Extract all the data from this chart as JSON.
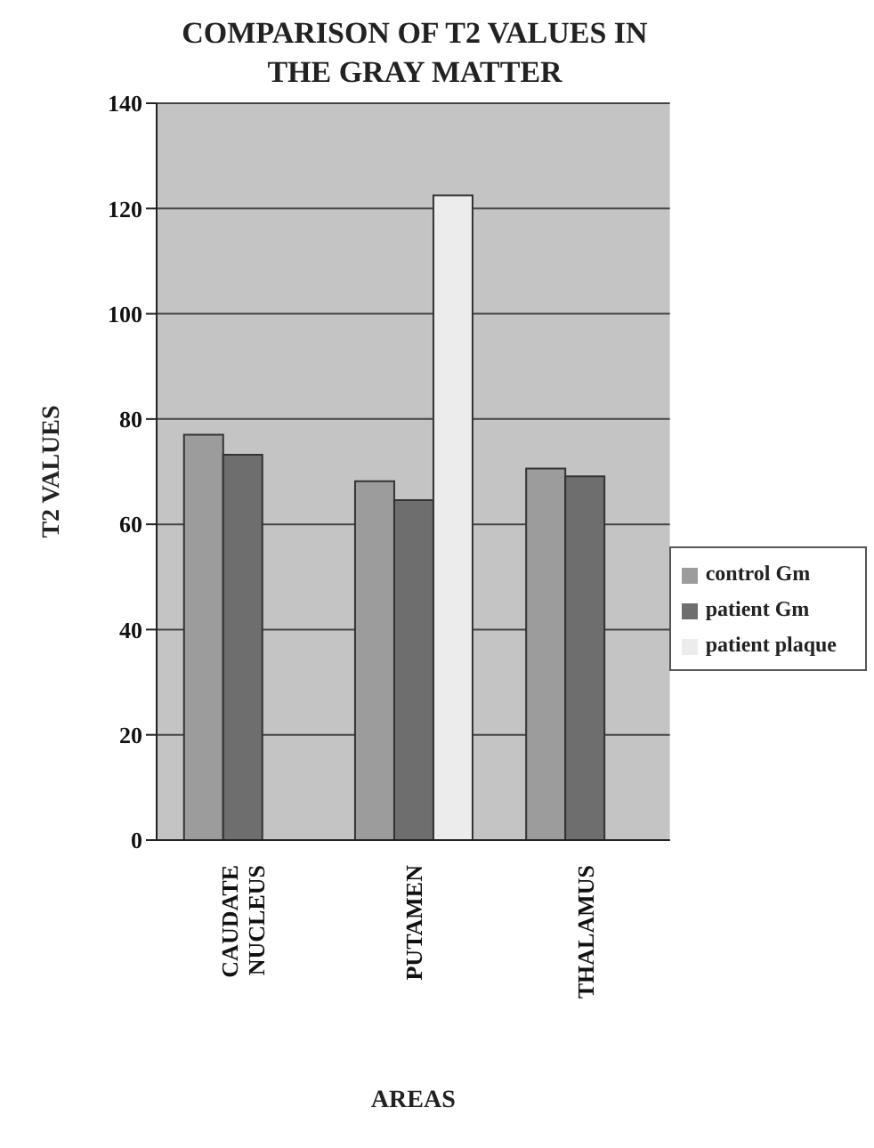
{
  "chart_data": {
    "type": "bar",
    "title": "COMPARISON OF T2 VALUES IN THE GRAY MATTER",
    "xlabel": "AREAS",
    "ylabel": "T2 VALUES",
    "categories": [
      "CAUDATE NUCLEUS",
      "PUTAMEN",
      "THALAMUS"
    ],
    "series": [
      {
        "name": "control Gm",
        "color": "#9c9c9c",
        "values": [
          77,
          68.2,
          70.6
        ]
      },
      {
        "name": "patient Gm",
        "color": "#6e6e6e",
        "values": [
          73.2,
          64.6,
          69.1
        ]
      },
      {
        "name": "patient plaque",
        "color": "#ececec",
        "values": [
          null,
          122.5,
          null
        ]
      }
    ],
    "ylim": [
      0,
      140
    ],
    "yticks": [
      0,
      20,
      40,
      60,
      80,
      100,
      120,
      140
    ],
    "grid": "y",
    "legend": "right"
  }
}
